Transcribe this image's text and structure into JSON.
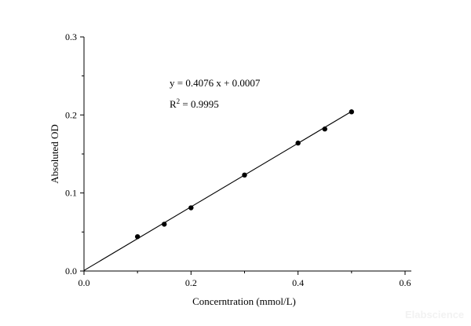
{
  "chart_data": {
    "type": "scatter",
    "xlabel": "Concerntration (mmol/L)",
    "ylabel": "Absoluted OD",
    "xlim": [
      0,
      0.6
    ],
    "ylim": [
      0,
      0.3
    ],
    "xticks": [
      "0.0",
      "0.2",
      "0.4",
      "0.6"
    ],
    "yticks": [
      "0.0",
      "0.1",
      "0.2",
      "0.3"
    ],
    "grid": false,
    "points": {
      "x": [
        0.1,
        0.15,
        0.2,
        0.3,
        0.4,
        0.45,
        0.5
      ],
      "y": [
        0.044,
        0.06,
        0.081,
        0.123,
        0.164,
        0.182,
        0.204
      ]
    },
    "fit_line": {
      "slope": 0.4076,
      "intercept": 0.0007,
      "x_range": [
        0,
        0.5
      ]
    },
    "annotations": {
      "equation": "y = 0.4076 x + 0.0007",
      "r_squared_prefix": "R",
      "r_squared_sup": "2",
      "r_squared_value": " = 0.9995"
    },
    "marker_color": "#000000",
    "line_color": "#000000"
  },
  "watermark": "Elabscience"
}
